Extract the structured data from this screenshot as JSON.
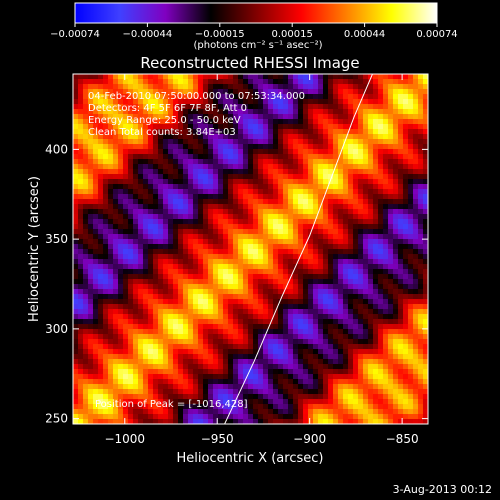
{
  "colorbar": {
    "ticks": [
      "−0.00074",
      "−0.00044",
      "−0.00015",
      "0.00015",
      "0.00044",
      "0.00074"
    ],
    "unit_label": "(photons cm⁻² s⁻¹ asec⁻²)"
  },
  "chart_data": {
    "type": "heatmap",
    "title": "Reconstructed RHESSI Image",
    "xlabel": "Heliocentric X (arcsec)",
    "ylabel": "Heliocentric Y (arcsec)",
    "xlim": [
      -1028,
      -836
    ],
    "ylim": [
      247,
      442
    ],
    "x_ticks": [
      -1000,
      -950,
      -900,
      -850
    ],
    "x_tick_labels": [
      "−1000",
      "−950",
      "−900",
      "−850"
    ],
    "y_ticks": [
      250,
      300,
      350,
      400
    ],
    "y_tick_labels": [
      "250",
      "300",
      "350",
      "400"
    ],
    "color_range": [
      -0.00074,
      0.00074
    ],
    "colormap": [
      "#0000ff",
      "#4040ff",
      "#8000c0",
      "#000000",
      "#800000",
      "#ff0000",
      "#ff8000",
      "#ffff00",
      "#ffffff"
    ],
    "peak_position": [
      -1016,
      428
    ],
    "annotations": [
      "04-Feb-2010 07:50:00.000 to 07:53:34.000",
      "Detectors: 4F 5F 6F 7F 8F, Att 0",
      "Energy Range: 25.0 - 50.0 keV",
      "Clean    Total counts: 3.84E+03"
    ],
    "peak_label": "Position of Peak = [-1016,428]",
    "limb_curve": [
      [
        -946,
        247
      ],
      [
        -930,
        282
      ],
      [
        -915,
        318
      ],
      [
        -900,
        352
      ],
      [
        -888,
        385
      ],
      [
        -876,
        418
      ],
      [
        -866,
        442
      ]
    ]
  },
  "footer": {
    "date": "3-Aug-2013 00:12"
  }
}
